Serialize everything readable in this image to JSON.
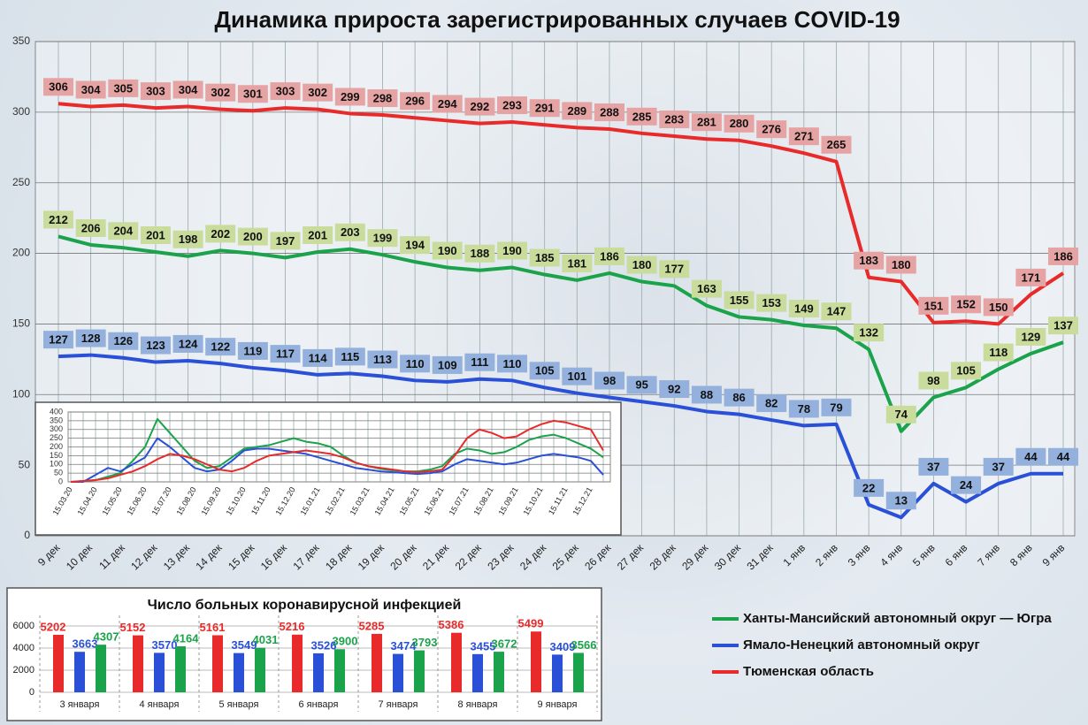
{
  "chart_data": [
    {
      "type": "line",
      "title": "Динамика прироста зарегистрированных случаев COVID-19",
      "categories": [
        "9 дек",
        "10 дек",
        "11 дек",
        "12 дек",
        "13 дек",
        "14 дек",
        "15 дек",
        "16 дек",
        "17 дек",
        "18 дек",
        "19 дек",
        "20 дек",
        "21 дек",
        "22 дек",
        "23 дек",
        "24 дек",
        "25 дек",
        "26 дек",
        "27 дек",
        "28 дек",
        "29 дек",
        "30 дек",
        "31 дек",
        "1 янв",
        "2 янв",
        "3 янв",
        "4 янв",
        "5 янв",
        "6 янв",
        "7 янв",
        "8 янв",
        "9 янв"
      ],
      "ylim": [
        0,
        350
      ],
      "yticks": [
        0,
        50,
        100,
        150,
        200,
        250,
        300,
        350
      ],
      "grid": true,
      "legend": "lower right",
      "series": [
        {
          "name": "Ханты-Мансийский автономный округ — Югра",
          "color": "#1aa34a",
          "label_color": "#c9dc9c",
          "values": [
            212,
            206,
            204,
            201,
            198,
            202,
            200,
            197,
            201,
            203,
            199,
            194,
            190,
            188,
            190,
            185,
            181,
            186,
            180,
            177,
            163,
            155,
            153,
            149,
            147,
            132,
            74,
            98,
            105,
            118,
            129,
            137
          ]
        },
        {
          "name": "Ямало-Ненецкий автономный округ",
          "color": "#2a50d8",
          "label_color": "#93b1dc",
          "values": [
            127,
            128,
            126,
            123,
            124,
            122,
            119,
            117,
            114,
            115,
            113,
            110,
            109,
            111,
            110,
            105,
            101,
            98,
            95,
            92,
            88,
            86,
            82,
            78,
            79,
            22,
            13,
            37,
            24,
            37,
            44,
            44
          ]
        },
        {
          "name": "Тюменская область",
          "color": "#e82a2a",
          "label_color": "#e6a3a3",
          "values": [
            306,
            304,
            305,
            303,
            304,
            302,
            301,
            303,
            302,
            299,
            298,
            296,
            294,
            292,
            293,
            291,
            289,
            288,
            285,
            283,
            281,
            280,
            276,
            271,
            265,
            183,
            180,
            151,
            152,
            150,
            171,
            186
          ]
        }
      ]
    },
    {
      "type": "line",
      "categories": [
        "15.03.20",
        null,
        "15.04.20",
        null,
        "15.05.20",
        null,
        "15.06.20",
        null,
        "15.07.20",
        null,
        "15.08.20",
        null,
        "15.09.20",
        null,
        "15.10.20",
        null,
        "15.11.20",
        null,
        "15.12.20",
        null,
        "15.01.21",
        null,
        "15.02.21",
        null,
        "15.03.21",
        null,
        "15.04.21",
        null,
        "15.05.21",
        null,
        "15.06.21",
        null,
        "15.07.21",
        null,
        "15.08.21",
        null,
        "15.09.21",
        null,
        "15.10.21",
        null,
        "15.11.21",
        null,
        "15.12.21",
        null
      ],
      "ylim": [
        0,
        400
      ],
      "yticks": [
        0,
        50,
        100,
        150,
        200,
        250,
        300,
        350,
        400
      ],
      "grid": true,
      "series": [
        {
          "color": "#1aa34a",
          "values": [
            0,
            5,
            10,
            30,
            50,
            120,
            200,
            360,
            280,
            200,
            120,
            80,
            90,
            140,
            190,
            200,
            210,
            230,
            250,
            230,
            220,
            200,
            150,
            110,
            90,
            75,
            65,
            60,
            60,
            70,
            90,
            160,
            190,
            180,
            160,
            170,
            200,
            240,
            260,
            270,
            250,
            220,
            190,
            140
          ]
        },
        {
          "color": "#2a50d8",
          "values": [
            0,
            0,
            40,
            80,
            60,
            100,
            140,
            250,
            200,
            140,
            80,
            60,
            70,
            120,
            180,
            190,
            190,
            180,
            170,
            160,
            140,
            120,
            100,
            80,
            70,
            60,
            55,
            50,
            45,
            50,
            60,
            100,
            130,
            120,
            110,
            100,
            110,
            130,
            150,
            160,
            150,
            140,
            120,
            40
          ]
        },
        {
          "color": "#e82a2a",
          "values": [
            0,
            5,
            10,
            20,
            40,
            60,
            90,
            130,
            160,
            150,
            130,
            100,
            70,
            60,
            80,
            120,
            150,
            160,
            170,
            180,
            170,
            160,
            140,
            110,
            90,
            80,
            70,
            60,
            55,
            60,
            70,
            150,
            250,
            300,
            280,
            250,
            260,
            300,
            330,
            350,
            340,
            320,
            300,
            180
          ]
        }
      ]
    },
    {
      "type": "bar",
      "title": "Число больных коронавирусной инфекцией",
      "categories": [
        "3 января",
        "4 января",
        "5 января",
        "6 января",
        "7 января",
        "8 января",
        "9 января"
      ],
      "ylim": [
        0,
        6000
      ],
      "yticks": [
        0,
        2000,
        4000,
        6000
      ],
      "grid": true,
      "series": [
        {
          "color": "#e82a2a",
          "values": [
            5202,
            5152,
            5161,
            5216,
            5285,
            5386,
            5499
          ]
        },
        {
          "color": "#2a50d8",
          "values": [
            3663,
            3570,
            3549,
            3526,
            3474,
            3455,
            3409
          ]
        },
        {
          "color": "#1aa34a",
          "values": [
            4307,
            4164,
            4031,
            3900,
            3793,
            3672,
            3566
          ]
        }
      ]
    }
  ]
}
